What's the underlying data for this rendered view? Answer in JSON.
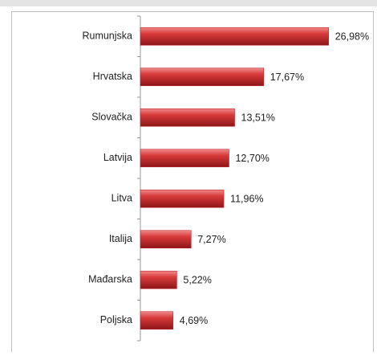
{
  "chart_data": {
    "type": "bar",
    "orientation": "horizontal",
    "categories": [
      "Rumunjska",
      "Hrvatska",
      "Slovačka",
      "Latvija",
      "Litva",
      "Italija",
      "Mađarska",
      "Poljska"
    ],
    "values": [
      26.98,
      17.67,
      13.51,
      12.7,
      11.96,
      7.27,
      5.22,
      4.69
    ],
    "value_labels": [
      "26,98%",
      "17,67%",
      "13,51%",
      "12,70%",
      "11,96%",
      "7,27%",
      "5,22%",
      "4,69%"
    ],
    "color": "#c0282d",
    "xlim": [
      0,
      30
    ]
  }
}
